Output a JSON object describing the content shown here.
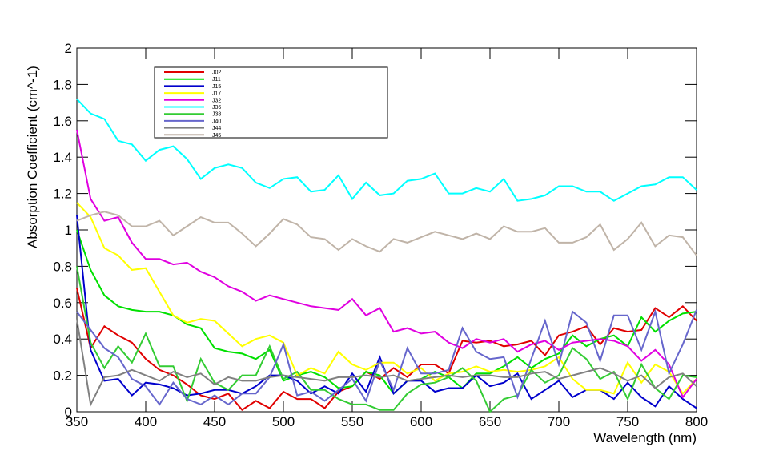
{
  "chart_data": {
    "type": "line",
    "xlabel": "Wavelength (nm)",
    "ylabel": "Absorption Coefficient (cm^-1)",
    "x": [
      350,
      360,
      370,
      380,
      390,
      400,
      410,
      420,
      430,
      440,
      450,
      460,
      470,
      480,
      490,
      500,
      510,
      520,
      530,
      540,
      550,
      560,
      570,
      580,
      590,
      600,
      610,
      620,
      630,
      640,
      650,
      660,
      670,
      680,
      690,
      700,
      710,
      720,
      730,
      740,
      750,
      760,
      770,
      780,
      790,
      800
    ],
    "xlim": [
      350,
      800
    ],
    "xticks": [
      350,
      400,
      450,
      500,
      550,
      600,
      650,
      700,
      750,
      800
    ],
    "ylim": [
      0,
      2
    ],
    "yticks": [
      0,
      0.2,
      0.4,
      0.6,
      0.8,
      1,
      1.2,
      1.4,
      1.6,
      1.8,
      2
    ],
    "series": [
      {
        "name": "J02",
        "color": "#e00000",
        "values": [
          0.68,
          0.35,
          0.47,
          0.42,
          0.38,
          0.29,
          0.23,
          0.2,
          0.15,
          0.09,
          0.07,
          0.1,
          0.01,
          0.06,
          0.02,
          0.11,
          0.07,
          0.07,
          0.02,
          0.11,
          0.14,
          0.22,
          0.18,
          0.24,
          0.19,
          0.26,
          0.26,
          0.21,
          0.39,
          0.38,
          0.39,
          0.36,
          0.37,
          0.39,
          0.31,
          0.42,
          0.44,
          0.47,
          0.37,
          0.46,
          0.44,
          0.45,
          0.57,
          0.52,
          0.58,
          0.5
        ]
      },
      {
        "name": "J11",
        "color": "#00e000",
        "values": [
          1.0,
          0.78,
          0.64,
          0.58,
          0.56,
          0.55,
          0.55,
          0.53,
          0.48,
          0.46,
          0.35,
          0.33,
          0.32,
          0.29,
          0.34,
          0.17,
          0.2,
          0.22,
          0.19,
          0.13,
          0.14,
          0.22,
          0.2,
          0.1,
          0.17,
          0.18,
          0.22,
          0.19,
          0.13,
          0.21,
          0.21,
          0.25,
          0.3,
          0.24,
          0.29,
          0.32,
          0.42,
          0.36,
          0.4,
          0.42,
          0.36,
          0.52,
          0.44,
          0.5,
          0.54,
          0.55
        ]
      },
      {
        "name": "J15",
        "color": "#0000cc",
        "values": [
          1.08,
          0.34,
          0.17,
          0.18,
          0.09,
          0.16,
          0.15,
          0.13,
          0.09,
          0.1,
          0.12,
          0.12,
          0.1,
          0.14,
          0.2,
          0.2,
          0.17,
          0.1,
          0.14,
          0.1,
          0.21,
          0.11,
          0.3,
          0.1,
          0.17,
          0.17,
          0.11,
          0.13,
          0.13,
          0.2,
          0.14,
          0.16,
          0.21,
          0.07,
          0.12,
          0.17,
          0.08,
          0.12,
          0.12,
          0.07,
          0.16,
          0.08,
          0.03,
          0.14,
          0.07,
          0.02
        ]
      },
      {
        "name": "J17",
        "color": "#ffff00",
        "values": [
          1.15,
          1.07,
          0.9,
          0.86,
          0.78,
          0.79,
          0.66,
          0.53,
          0.49,
          0.51,
          0.5,
          0.43,
          0.36,
          0.4,
          0.42,
          0.38,
          0.2,
          0.24,
          0.21,
          0.33,
          0.26,
          0.23,
          0.27,
          0.27,
          0.21,
          0.24,
          0.17,
          0.21,
          0.22,
          0.25,
          0.22,
          0.23,
          0.22,
          0.23,
          0.25,
          0.3,
          0.18,
          0.12,
          0.12,
          0.1,
          0.27,
          0.16,
          0.26,
          0.22,
          0.1,
          0.18
        ]
      },
      {
        "name": "J32",
        "color": "#e000e0",
        "values": [
          1.55,
          1.17,
          1.05,
          1.07,
          0.93,
          0.84,
          0.84,
          0.81,
          0.82,
          0.77,
          0.74,
          0.69,
          0.66,
          0.61,
          0.64,
          0.62,
          0.6,
          0.58,
          0.57,
          0.56,
          0.62,
          0.53,
          0.57,
          0.44,
          0.46,
          0.43,
          0.44,
          0.38,
          0.35,
          0.4,
          0.38,
          0.4,
          0.33,
          0.37,
          0.39,
          0.34,
          0.38,
          0.39,
          0.4,
          0.39,
          0.36,
          0.28,
          0.34,
          0.26,
          0.08,
          0.18
        ]
      },
      {
        "name": "J36",
        "color": "#00ffff",
        "values": [
          1.72,
          1.64,
          1.61,
          1.49,
          1.47,
          1.38,
          1.44,
          1.46,
          1.39,
          1.28,
          1.34,
          1.36,
          1.34,
          1.26,
          1.23,
          1.28,
          1.29,
          1.21,
          1.22,
          1.3,
          1.17,
          1.26,
          1.19,
          1.2,
          1.27,
          1.28,
          1.31,
          1.2,
          1.2,
          1.23,
          1.21,
          1.28,
          1.16,
          1.17,
          1.19,
          1.24,
          1.24,
          1.21,
          1.21,
          1.16,
          1.2,
          1.24,
          1.25,
          1.29,
          1.29,
          1.22
        ]
      },
      {
        "name": "J38",
        "color": "#33cc33",
        "values": [
          0.8,
          0.38,
          0.24,
          0.36,
          0.27,
          0.43,
          0.25,
          0.25,
          0.06,
          0.29,
          0.16,
          0.12,
          0.2,
          0.2,
          0.36,
          0.18,
          0.22,
          0.12,
          0.12,
          0.07,
          0.04,
          0.04,
          0.01,
          0.01,
          0.1,
          0.15,
          0.16,
          0.19,
          0.24,
          0.17,
          0.0,
          0.07,
          0.09,
          0.23,
          0.16,
          0.2,
          0.35,
          0.29,
          0.18,
          0.22,
          0.07,
          0.26,
          0.13,
          0.07,
          0.2,
          0.19
        ]
      },
      {
        "name": "J40",
        "color": "#6666cc",
        "values": [
          0.55,
          0.45,
          0.35,
          0.3,
          0.18,
          0.14,
          0.04,
          0.16,
          0.07,
          0.04,
          0.09,
          0.04,
          0.1,
          0.1,
          0.19,
          0.37,
          0.09,
          0.11,
          0.06,
          0.12,
          0.18,
          0.06,
          0.28,
          0.12,
          0.35,
          0.21,
          0.21,
          0.23,
          0.46,
          0.33,
          0.29,
          0.3,
          0.08,
          0.29,
          0.5,
          0.26,
          0.55,
          0.49,
          0.28,
          0.53,
          0.53,
          0.34,
          0.55,
          0.21,
          0.37,
          0.56
        ]
      },
      {
        "name": "J44",
        "color": "#808080",
        "values": [
          0.51,
          0.04,
          0.19,
          0.2,
          0.23,
          0.2,
          0.17,
          0.22,
          0.19,
          0.21,
          0.15,
          0.19,
          0.17,
          0.17,
          0.19,
          0.2,
          0.19,
          0.18,
          0.17,
          0.19,
          0.19,
          0.2,
          0.19,
          0.2,
          0.17,
          0.18,
          0.19,
          0.2,
          0.19,
          0.2,
          0.2,
          0.19,
          0.19,
          0.21,
          0.22,
          0.18,
          0.2,
          0.22,
          0.24,
          0.21,
          0.17,
          0.2,
          0.13,
          0.19,
          0.21,
          0.14
        ]
      },
      {
        "name": "J45",
        "color": "#c0b4a8",
        "values": [
          1.05,
          1.08,
          1.1,
          1.08,
          1.02,
          1.02,
          1.05,
          0.97,
          1.02,
          1.07,
          1.04,
          1.04,
          0.98,
          0.91,
          0.98,
          1.06,
          1.03,
          0.96,
          0.95,
          0.89,
          0.95,
          0.91,
          0.88,
          0.95,
          0.93,
          0.96,
          0.99,
          0.97,
          0.95,
          0.98,
          0.95,
          1.02,
          0.99,
          0.99,
          1.01,
          0.93,
          0.93,
          0.96,
          1.03,
          0.89,
          0.95,
          1.04,
          0.91,
          0.97,
          0.96,
          0.86
        ]
      }
    ]
  }
}
